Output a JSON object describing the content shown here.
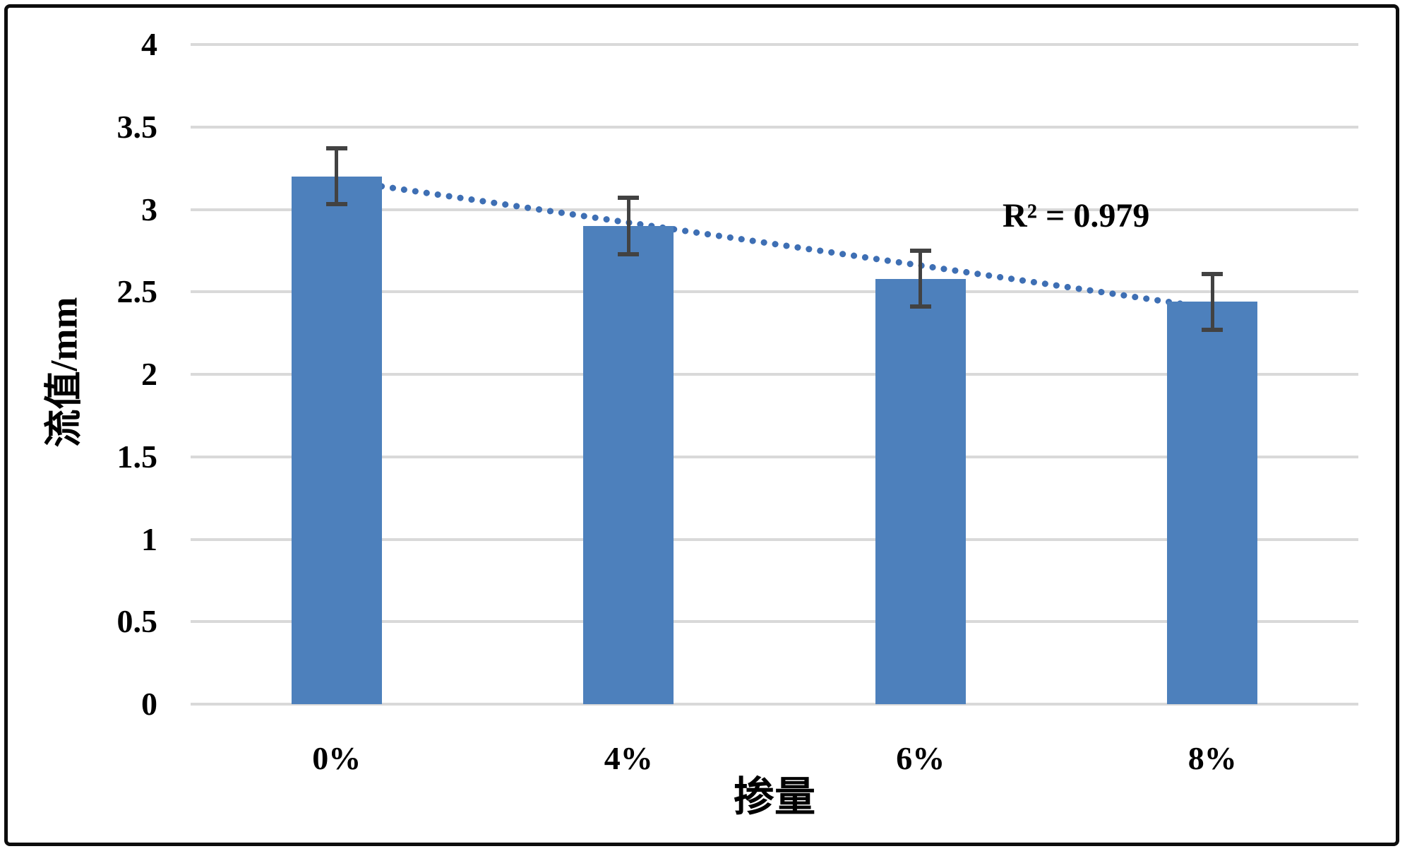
{
  "chart_data": {
    "type": "bar",
    "title": "",
    "categories": [
      "0%",
      "4%",
      "6%",
      "8%"
    ],
    "values": [
      3.2,
      2.9,
      2.58,
      2.44
    ],
    "error_bars": {
      "plus": [
        0.17,
        0.17,
        0.17,
        0.17
      ],
      "minus": [
        0.17,
        0.17,
        0.17,
        0.17
      ]
    },
    "xlabel": "掺量",
    "ylabel": "流值/mm",
    "ylim": [
      0,
      4
    ],
    "ytick_step": 0.5,
    "ytick_labels": [
      "4",
      "3.5",
      "3",
      "2.5",
      "2",
      "1.5",
      "1",
      "0.5",
      "0"
    ],
    "grid": true,
    "legend": "none",
    "trendline": {
      "type": "linear",
      "style": "dotted",
      "value_at_first_category": 3.18,
      "value_at_last_category": 2.4,
      "r_squared": 0.979,
      "r_squared_label": "R² = 0.979"
    },
    "colors": {
      "bar": "#4d80bc",
      "trendline": "#3e6fb4",
      "gridline": "#d9d9d9",
      "error_bar": "#424242",
      "text": "#000000",
      "border": "#0d0d0d",
      "background": "#ffffff"
    }
  }
}
